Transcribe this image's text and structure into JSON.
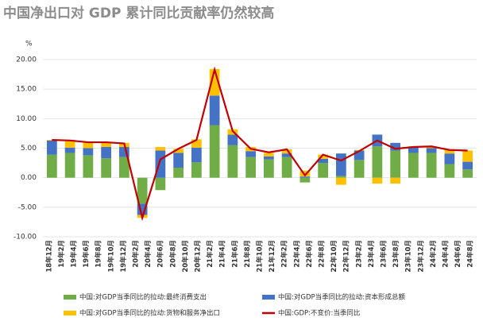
{
  "chart_data": {
    "type": "bar_line",
    "title": "中国净出口对 GDP 累计同比贡献率仍然较高",
    "y_unit": "%",
    "xticks": [
      "18年12月",
      "19年2月",
      "19年4月",
      "19年6月",
      "19年8月",
      "19年10月",
      "19年12月",
      "20年2月",
      "20年4月",
      "20年6月",
      "20年8月",
      "20年10月",
      "20年12月",
      "21年2月",
      "21年4月",
      "21年6月",
      "21年8月",
      "21年10月",
      "21年12月",
      "22年2月",
      "22年4月",
      "22年6月",
      "22年8月",
      "22年10月",
      "22年12月",
      "23年2月",
      "23年4月",
      "23年6月",
      "23年8月",
      "23年10月",
      "23年12月",
      "24年2月",
      "24年4月",
      "24年6月",
      "24年8月"
    ],
    "ylim": [
      -10,
      20
    ],
    "yticks": [
      {
        "value": -10,
        "label": "-10.00"
      },
      {
        "value": -5,
        "label": "-5.00"
      },
      {
        "value": 0,
        "label": "0.00"
      },
      {
        "value": 5,
        "label": "5.00"
      },
      {
        "value": 10,
        "label": "10.00"
      },
      {
        "value": 15,
        "label": "15.00"
      },
      {
        "value": 20,
        "label": "20.00"
      }
    ],
    "grid": true,
    "series": [
      {
        "name": "中国:对GDP当季同比的拉动:最终消费支出",
        "kind": "bar",
        "color": "#70ad47",
        "values": [
          3.9,
          4.2,
          3.8,
          3.3,
          3.5,
          -4.4,
          -2.1,
          1.7,
          2.6,
          8.9,
          5.5,
          3.5,
          3.1,
          3.5,
          -0.8,
          2.5,
          0.3,
          3.0,
          5.3,
          4.6,
          4.2,
          4.2,
          2.3,
          1.4
        ]
      },
      {
        "name": "中国:对GDP当季同比的拉动:资本形成总额",
        "kind": "bar",
        "color": "#4472c4",
        "values": [
          2.4,
          0.9,
          1.2,
          1.9,
          1.7,
          -1.9,
          4.6,
          2.5,
          2.5,
          5.0,
          1.8,
          1.0,
          0.5,
          0.6,
          0.2,
          0.7,
          3.8,
          1.6,
          2.0,
          1.3,
          1.0,
          0.8,
          1.8,
          1.3
        ]
      },
      {
        "name": "中国:对GDP当季同比的拉动:货物和服务净出口",
        "kind": "bar",
        "color": "#ffc000",
        "values": [
          0.1,
          1.3,
          1.0,
          0.8,
          0.7,
          -0.5,
          0.6,
          0.7,
          1.4,
          4.5,
          0.9,
          0.7,
          0.6,
          0.7,
          1.0,
          0.7,
          -1.2,
          0.1,
          -1.0,
          -1.0,
          0.1,
          0.3,
          0.6,
          1.9
        ]
      },
      {
        "name": "中国:GDP:不变价:当季同比",
        "kind": "line",
        "color": "#c00000",
        "values": [
          6.4,
          6.3,
          6.0,
          6.0,
          5.8,
          -6.8,
          3.1,
          4.9,
          6.4,
          18.3,
          7.9,
          4.9,
          4.3,
          4.8,
          0.4,
          3.9,
          2.9,
          4.5,
          6.3,
          4.9,
          5.2,
          5.3,
          4.7,
          4.6
        ]
      }
    ]
  }
}
